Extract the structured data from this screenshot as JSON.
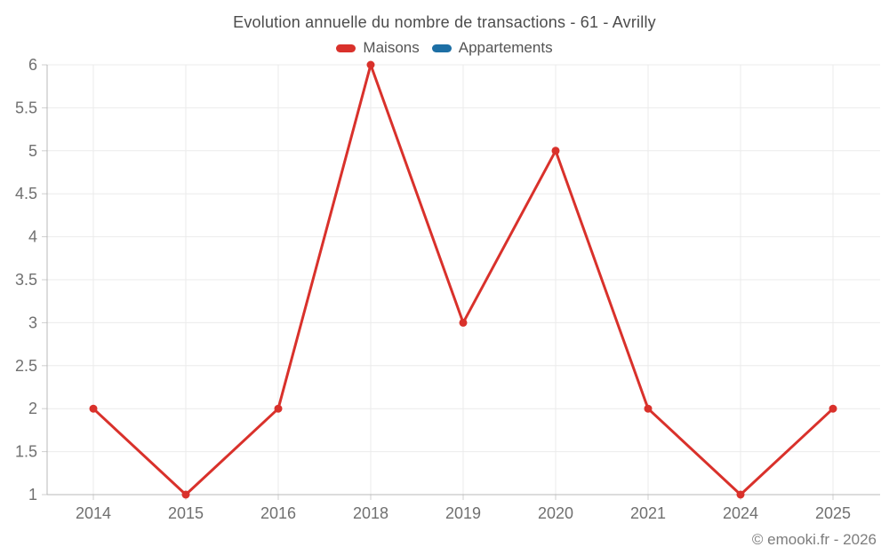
{
  "chart_data": {
    "type": "line",
    "title": "Evolution annuelle du nombre de transactions - 61 - Avrilly",
    "categories": [
      "2014",
      "2015",
      "2016",
      "2018",
      "2019",
      "2020",
      "2021",
      "2024",
      "2025"
    ],
    "series": [
      {
        "name": "Maisons",
        "color": "#d9312b",
        "values": [
          2,
          1,
          2,
          6,
          3,
          5,
          2,
          1,
          2
        ]
      },
      {
        "name": "Appartements",
        "color": "#1d6fa5",
        "values": []
      }
    ],
    "ylim": [
      1,
      6
    ],
    "yticks": [
      "1",
      "1.5",
      "2",
      "2.5",
      "3",
      "3.5",
      "4",
      "4.5",
      "5",
      "5.5",
      "6"
    ],
    "xlabel": "",
    "ylabel": "",
    "grid": true,
    "legend_position": "top"
  },
  "footer": {
    "text": "© emooki.fr - 2026"
  },
  "colors": {
    "background": "#ffffff",
    "grid": "#ebebeb",
    "axis": "#b8b8b8",
    "tick": "#cfcfcf",
    "tick_label": "#707070",
    "title": "#4c4c4c",
    "legend_label": "#545454",
    "footer": "#7d7d7d"
  }
}
